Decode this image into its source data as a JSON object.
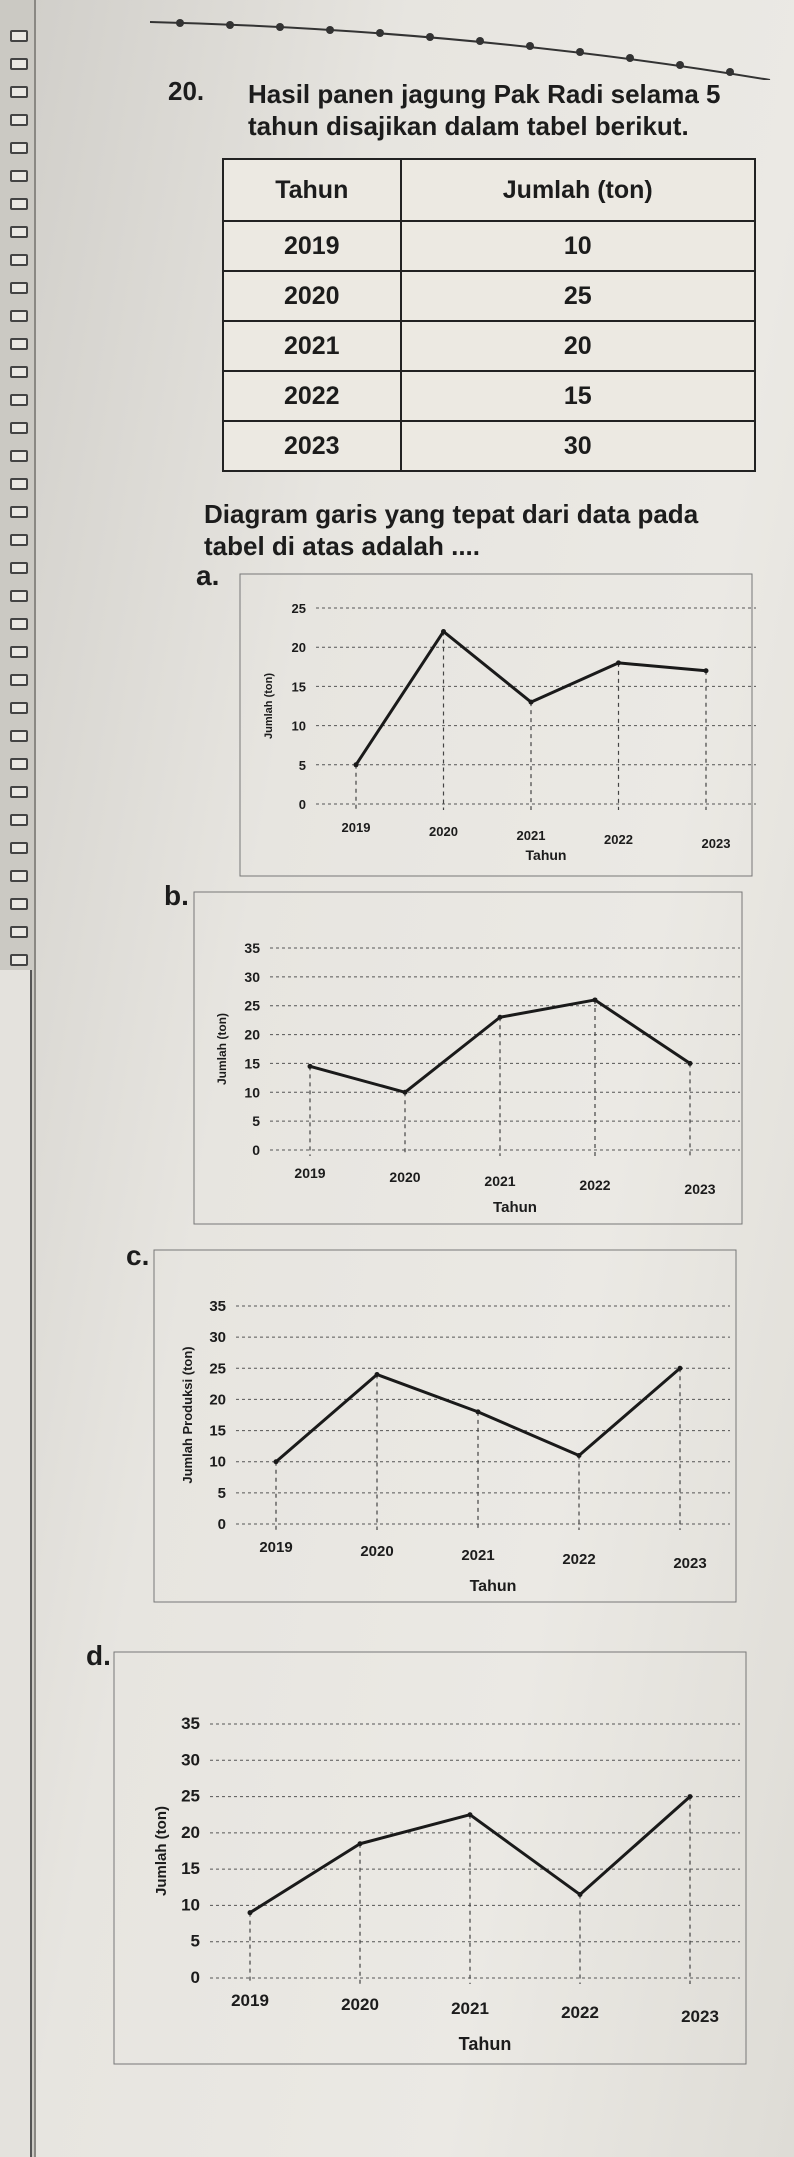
{
  "question": {
    "number": "20.",
    "intro": "Hasil panen jagung Pak Radi selama 5 tahun disajikan dalam tabel berikut.",
    "prompt": "Diagram garis yang tepat dari data pada tabel di atas adalah ...."
  },
  "table": {
    "headers": [
      "Tahun",
      "Jumlah (ton)"
    ],
    "rows": [
      [
        "2019",
        "10"
      ],
      [
        "2020",
        "25"
      ],
      [
        "2021",
        "20"
      ],
      [
        "2022",
        "15"
      ],
      [
        "2023",
        "30"
      ]
    ]
  },
  "chart_data": [
    {
      "type": "line",
      "option": "a.",
      "categories": [
        "2019",
        "2020",
        "2021",
        "2022",
        "2023"
      ],
      "values": [
        5,
        22,
        13,
        18,
        17
      ],
      "yticks": [
        0,
        5,
        10,
        15,
        20,
        25
      ],
      "ylim": [
        0,
        25
      ],
      "xlabel": "Tahun",
      "ylabel": "Jumlah (ton)",
      "grid": true
    },
    {
      "type": "line",
      "option": "b.",
      "categories": [
        "2019",
        "2020",
        "2021",
        "2022",
        "2023"
      ],
      "values": [
        14.5,
        10,
        23,
        26,
        15
      ],
      "yticks": [
        0,
        5,
        10,
        15,
        20,
        25,
        30,
        35
      ],
      "ylim": [
        0,
        35
      ],
      "xlabel": "Tahun",
      "ylabel": "Jumlah (ton)",
      "grid": true
    },
    {
      "type": "line",
      "option": "c.",
      "categories": [
        "2019",
        "2020",
        "2021",
        "2022",
        "2023"
      ],
      "values": [
        10,
        24,
        18,
        11,
        25
      ],
      "yticks": [
        0,
        5,
        10,
        15,
        20,
        25,
        30,
        35
      ],
      "ylim": [
        0,
        35
      ],
      "xlabel": "Tahun",
      "ylabel": "Jumlah Produksi (ton)",
      "grid": true
    },
    {
      "type": "line",
      "option": "d.",
      "categories": [
        "2019",
        "2020",
        "2021",
        "2022",
        "2023"
      ],
      "values": [
        9,
        18.5,
        22.5,
        11.5,
        25
      ],
      "yticks": [
        0,
        5,
        10,
        15,
        20,
        25,
        30,
        35
      ],
      "ylim": [
        0,
        35
      ],
      "xlabel": "Tahun",
      "ylabel": "Jumlah (ton)",
      "grid": true
    }
  ]
}
